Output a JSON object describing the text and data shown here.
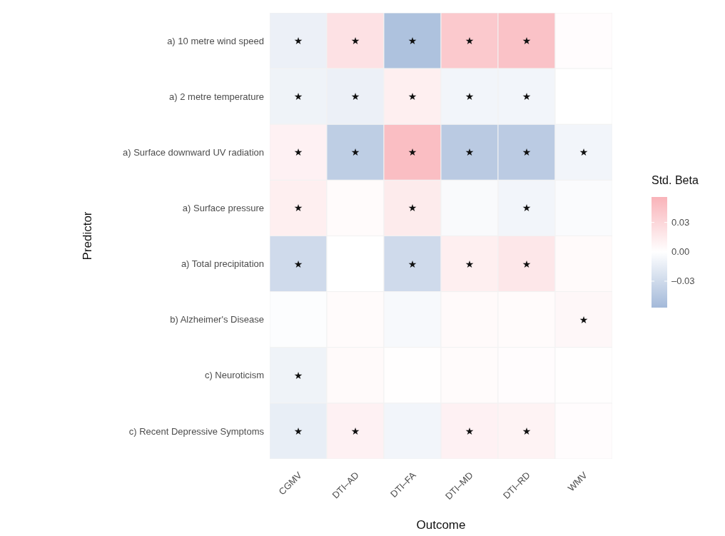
{
  "chart_data": {
    "type": "heatmap",
    "xlabel": "Outcome",
    "ylabel": "Predictor",
    "legend_title": "Std. Beta",
    "categories": [
      "CGMV",
      "DTI–AD",
      "DTI–FA",
      "DTI–MD",
      "DTI–RD",
      "WMV"
    ],
    "y_categories": [
      "a) 10 metre wind speed",
      "a) 2 metre temperature",
      "a) Surface downward UV radiation",
      "a) Surface pressure",
      "a) Total precipitation",
      "b) Alzheimer's Disease",
      "c) Neuroticism",
      "c) Recent Depressive Symptoms"
    ],
    "cells": [
      [
        -0.012,
        0.022,
        -0.05,
        0.04,
        0.045,
        0.002
      ],
      [
        -0.01,
        -0.012,
        0.012,
        -0.008,
        -0.008,
        0.0
      ],
      [
        0.01,
        -0.04,
        0.048,
        -0.043,
        -0.042,
        -0.008
      ],
      [
        0.012,
        0.003,
        0.015,
        -0.004,
        -0.008,
        -0.003
      ],
      [
        -0.03,
        0.0,
        -0.03,
        0.012,
        0.018,
        0.004
      ],
      [
        -0.002,
        0.003,
        -0.005,
        0.004,
        0.003,
        0.006
      ],
      [
        -0.01,
        0.004,
        0.001,
        0.003,
        0.002,
        0.001
      ],
      [
        -0.014,
        0.01,
        -0.008,
        0.01,
        0.009,
        0.002
      ]
    ],
    "cell_labels": [
      [
        "★",
        "★",
        "★",
        "★",
        "★",
        null
      ],
      [
        "★",
        "★",
        "★",
        "★",
        "★",
        null
      ],
      [
        "★",
        "★",
        "★",
        "★",
        "★",
        "★"
      ],
      [
        "★",
        null,
        "★",
        null,
        "★",
        null
      ],
      [
        "★",
        null,
        "★",
        "★",
        "★",
        null
      ],
      [
        null,
        null,
        null,
        null,
        null,
        "★"
      ],
      [
        "★",
        null,
        null,
        null,
        null,
        null
      ],
      [
        "★",
        "★",
        null,
        "★",
        "★",
        null
      ]
    ],
    "clim": [
      -0.057,
      0.056
    ],
    "cticks": [
      {
        "value": 0.03,
        "label": "0.03"
      },
      {
        "value": 0,
        "label": "0.00"
      },
      {
        "value": -0.03,
        "label": "–0.03"
      }
    ]
  }
}
